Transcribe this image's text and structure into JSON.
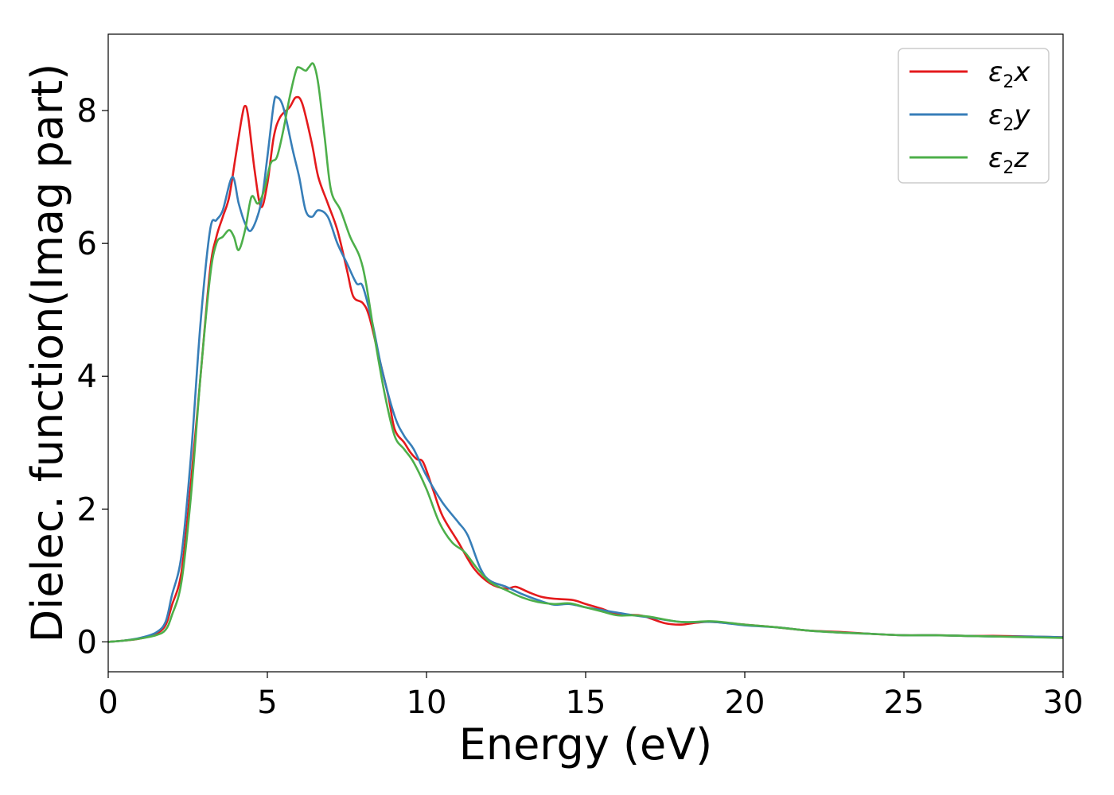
{
  "chart_data": {
    "type": "line",
    "xlabel": "Energy (eV)",
    "ylabel": "Dielec. function(Imag part)",
    "xlim": [
      0,
      30
    ],
    "ylim": [
      -0.45,
      9.15
    ],
    "xticks": [
      0,
      5,
      10,
      15,
      20,
      25,
      30
    ],
    "yticks": [
      0,
      2,
      4,
      6,
      8
    ],
    "grid": false,
    "legend_position": "top-right",
    "series": [
      {
        "name": "ε2x",
        "legend_base": "ε",
        "legend_sub": "2",
        "legend_tail": "x",
        "color": "#e41a1c",
        "points": [
          [
            0,
            0
          ],
          [
            0.5,
            0.02
          ],
          [
            1.0,
            0.05
          ],
          [
            1.5,
            0.12
          ],
          [
            1.8,
            0.25
          ],
          [
            2.0,
            0.55
          ],
          [
            2.3,
            1.05
          ],
          [
            2.6,
            2.4
          ],
          [
            2.9,
            4.0
          ],
          [
            3.2,
            5.6
          ],
          [
            3.4,
            6.1
          ],
          [
            3.6,
            6.4
          ],
          [
            3.8,
            6.7
          ],
          [
            4.0,
            7.3
          ],
          [
            4.2,
            7.9
          ],
          [
            4.3,
            8.07
          ],
          [
            4.4,
            7.9
          ],
          [
            4.6,
            7.1
          ],
          [
            4.8,
            6.55
          ],
          [
            5.0,
            6.9
          ],
          [
            5.2,
            7.6
          ],
          [
            5.4,
            7.9
          ],
          [
            5.7,
            8.05
          ],
          [
            5.9,
            8.2
          ],
          [
            6.1,
            8.1
          ],
          [
            6.4,
            7.5
          ],
          [
            6.6,
            7.0
          ],
          [
            6.9,
            6.6
          ],
          [
            7.2,
            6.2
          ],
          [
            7.5,
            5.6
          ],
          [
            7.7,
            5.2
          ],
          [
            8.0,
            5.1
          ],
          [
            8.2,
            4.9
          ],
          [
            8.5,
            4.3
          ],
          [
            8.8,
            3.7
          ],
          [
            9.0,
            3.2
          ],
          [
            9.3,
            3.0
          ],
          [
            9.5,
            2.85
          ],
          [
            9.7,
            2.75
          ],
          [
            9.9,
            2.7
          ],
          [
            10.2,
            2.3
          ],
          [
            10.5,
            1.9
          ],
          [
            11.0,
            1.5
          ],
          [
            11.5,
            1.1
          ],
          [
            12.0,
            0.88
          ],
          [
            12.5,
            0.8
          ],
          [
            12.8,
            0.83
          ],
          [
            13.2,
            0.75
          ],
          [
            13.6,
            0.68
          ],
          [
            14.0,
            0.65
          ],
          [
            14.6,
            0.63
          ],
          [
            15.0,
            0.57
          ],
          [
            15.5,
            0.5
          ],
          [
            16.0,
            0.42
          ],
          [
            16.7,
            0.4
          ],
          [
            17.0,
            0.36
          ],
          [
            17.5,
            0.28
          ],
          [
            18.0,
            0.26
          ],
          [
            18.5,
            0.29
          ],
          [
            19.0,
            0.3
          ],
          [
            20.0,
            0.26
          ],
          [
            21.0,
            0.22
          ],
          [
            22.0,
            0.17
          ],
          [
            23.0,
            0.15
          ],
          [
            24.0,
            0.12
          ],
          [
            25.0,
            0.1
          ],
          [
            26.0,
            0.1
          ],
          [
            27.0,
            0.09
          ],
          [
            28.0,
            0.09
          ],
          [
            29.0,
            0.08
          ],
          [
            30.0,
            0.07
          ]
        ]
      },
      {
        "name": "ε2y",
        "legend_base": "ε",
        "legend_sub": "2",
        "legend_tail": "y",
        "color": "#377eb8",
        "points": [
          [
            0,
            0
          ],
          [
            0.5,
            0.02
          ],
          [
            1.0,
            0.06
          ],
          [
            1.5,
            0.14
          ],
          [
            1.8,
            0.3
          ],
          [
            2.0,
            0.7
          ],
          [
            2.3,
            1.3
          ],
          [
            2.6,
            2.8
          ],
          [
            2.9,
            4.8
          ],
          [
            3.2,
            6.2
          ],
          [
            3.4,
            6.35
          ],
          [
            3.6,
            6.5
          ],
          [
            3.9,
            7.0
          ],
          [
            4.1,
            6.6
          ],
          [
            4.3,
            6.3
          ],
          [
            4.5,
            6.2
          ],
          [
            4.8,
            6.6
          ],
          [
            5.0,
            7.3
          ],
          [
            5.2,
            8.1
          ],
          [
            5.3,
            8.2
          ],
          [
            5.5,
            8.05
          ],
          [
            5.8,
            7.4
          ],
          [
            6.0,
            7.0
          ],
          [
            6.2,
            6.5
          ],
          [
            6.4,
            6.4
          ],
          [
            6.6,
            6.5
          ],
          [
            6.9,
            6.4
          ],
          [
            7.2,
            6.0
          ],
          [
            7.5,
            5.7
          ],
          [
            7.8,
            5.4
          ],
          [
            8.0,
            5.35
          ],
          [
            8.3,
            4.8
          ],
          [
            8.6,
            4.1
          ],
          [
            9.0,
            3.4
          ],
          [
            9.3,
            3.1
          ],
          [
            9.6,
            2.9
          ],
          [
            10.0,
            2.5
          ],
          [
            10.5,
            2.1
          ],
          [
            11.0,
            1.8
          ],
          [
            11.3,
            1.6
          ],
          [
            11.7,
            1.1
          ],
          [
            12.0,
            0.92
          ],
          [
            12.5,
            0.83
          ],
          [
            13.0,
            0.72
          ],
          [
            13.5,
            0.63
          ],
          [
            14.0,
            0.56
          ],
          [
            14.5,
            0.57
          ],
          [
            15.0,
            0.52
          ],
          [
            15.5,
            0.48
          ],
          [
            16.0,
            0.44
          ],
          [
            16.5,
            0.4
          ],
          [
            17.0,
            0.37
          ],
          [
            18.0,
            0.3
          ],
          [
            19.0,
            0.3
          ],
          [
            20.0,
            0.25
          ],
          [
            21.0,
            0.22
          ],
          [
            22.0,
            0.17
          ],
          [
            23.0,
            0.14
          ],
          [
            24.0,
            0.12
          ],
          [
            25.0,
            0.1
          ],
          [
            26.0,
            0.1
          ],
          [
            27.0,
            0.09
          ],
          [
            28.0,
            0.08
          ],
          [
            29.0,
            0.08
          ],
          [
            30.0,
            0.07
          ]
        ]
      },
      {
        "name": "ε2z",
        "legend_base": "ε",
        "legend_sub": "2",
        "legend_tail": "z",
        "color": "#4daf4a",
        "points": [
          [
            0,
            0
          ],
          [
            0.5,
            0.02
          ],
          [
            1.0,
            0.05
          ],
          [
            1.5,
            0.1
          ],
          [
            1.8,
            0.18
          ],
          [
            2.0,
            0.4
          ],
          [
            2.3,
            0.9
          ],
          [
            2.6,
            2.2
          ],
          [
            2.9,
            4.0
          ],
          [
            3.2,
            5.5
          ],
          [
            3.4,
            6.0
          ],
          [
            3.6,
            6.1
          ],
          [
            3.8,
            6.2
          ],
          [
            3.95,
            6.1
          ],
          [
            4.1,
            5.9
          ],
          [
            4.3,
            6.2
          ],
          [
            4.5,
            6.7
          ],
          [
            4.7,
            6.6
          ],
          [
            4.9,
            6.8
          ],
          [
            5.1,
            7.2
          ],
          [
            5.3,
            7.3
          ],
          [
            5.5,
            7.7
          ],
          [
            5.7,
            8.2
          ],
          [
            5.9,
            8.6
          ],
          [
            6.0,
            8.65
          ],
          [
            6.2,
            8.6
          ],
          [
            6.3,
            8.65
          ],
          [
            6.45,
            8.7
          ],
          [
            6.6,
            8.4
          ],
          [
            6.8,
            7.6
          ],
          [
            7.0,
            6.8
          ],
          [
            7.3,
            6.5
          ],
          [
            7.6,
            6.1
          ],
          [
            7.9,
            5.8
          ],
          [
            8.1,
            5.4
          ],
          [
            8.4,
            4.5
          ],
          [
            8.7,
            3.7
          ],
          [
            9.0,
            3.1
          ],
          [
            9.3,
            2.9
          ],
          [
            9.6,
            2.7
          ],
          [
            10.0,
            2.3
          ],
          [
            10.4,
            1.8
          ],
          [
            10.8,
            1.5
          ],
          [
            11.2,
            1.35
          ],
          [
            11.6,
            1.1
          ],
          [
            12.0,
            0.9
          ],
          [
            12.5,
            0.78
          ],
          [
            13.0,
            0.67
          ],
          [
            13.5,
            0.6
          ],
          [
            14.0,
            0.57
          ],
          [
            14.5,
            0.58
          ],
          [
            15.0,
            0.52
          ],
          [
            15.5,
            0.46
          ],
          [
            16.0,
            0.4
          ],
          [
            16.5,
            0.4
          ],
          [
            17.0,
            0.38
          ],
          [
            18.0,
            0.3
          ],
          [
            19.0,
            0.31
          ],
          [
            20.0,
            0.26
          ],
          [
            21.0,
            0.22
          ],
          [
            22.0,
            0.17
          ],
          [
            23.0,
            0.14
          ],
          [
            24.0,
            0.12
          ],
          [
            25.0,
            0.1
          ],
          [
            26.0,
            0.1
          ],
          [
            27.0,
            0.09
          ],
          [
            28.0,
            0.08
          ],
          [
            29.0,
            0.07
          ],
          [
            30.0,
            0.06
          ]
        ]
      }
    ]
  }
}
